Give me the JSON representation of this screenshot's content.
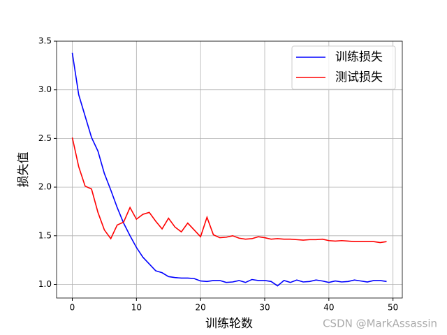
{
  "chart_data": {
    "type": "line",
    "xlabel": "训练轮数",
    "ylabel": "损失值",
    "x": [
      0,
      1,
      2,
      3,
      4,
      5,
      6,
      7,
      8,
      9,
      10,
      11,
      12,
      13,
      14,
      15,
      16,
      17,
      18,
      19,
      20,
      21,
      22,
      23,
      24,
      25,
      26,
      27,
      28,
      29,
      30,
      31,
      32,
      33,
      34,
      35,
      36,
      37,
      38,
      39,
      40,
      41,
      42,
      43,
      44,
      45,
      46,
      47,
      48,
      49
    ],
    "series": [
      {
        "name": "训练损失",
        "color": "#0000ff",
        "values": [
          3.38,
          2.95,
          2.73,
          2.51,
          2.37,
          2.14,
          1.97,
          1.79,
          1.63,
          1.5,
          1.38,
          1.28,
          1.21,
          1.14,
          1.12,
          1.08,
          1.07,
          1.065,
          1.065,
          1.06,
          1.035,
          1.03,
          1.04,
          1.04,
          1.02,
          1.025,
          1.04,
          1.02,
          1.05,
          1.04,
          1.04,
          1.03,
          0.985,
          1.04,
          1.02,
          1.045,
          1.025,
          1.03,
          1.045,
          1.035,
          1.02,
          1.035,
          1.025,
          1.03,
          1.045,
          1.035,
          1.025,
          1.04,
          1.04,
          1.03
        ]
      },
      {
        "name": "测试损失",
        "color": "#ff0000",
        "values": [
          2.51,
          2.21,
          2.01,
          1.98,
          1.74,
          1.56,
          1.47,
          1.61,
          1.64,
          1.79,
          1.67,
          1.72,
          1.74,
          1.65,
          1.57,
          1.68,
          1.59,
          1.54,
          1.63,
          1.56,
          1.49,
          1.69,
          1.51,
          1.48,
          1.485,
          1.5,
          1.475,
          1.465,
          1.47,
          1.49,
          1.48,
          1.465,
          1.47,
          1.465,
          1.465,
          1.46,
          1.455,
          1.46,
          1.46,
          1.465,
          1.45,
          1.445,
          1.45,
          1.445,
          1.44,
          1.44,
          1.44,
          1.44,
          1.43,
          1.44
        ]
      }
    ],
    "xlim": [
      -2.45,
      51.45
    ],
    "ylim": [
      0.86,
      3.5
    ],
    "xticks": [
      0,
      10,
      20,
      30,
      40,
      50
    ],
    "yticks": [
      {
        "value": 1,
        "label": "1.0"
      },
      1.5,
      {
        "value": 2,
        "label": "2.0"
      },
      2.5,
      {
        "value": 3,
        "label": "3.0"
      },
      3.5
    ],
    "grid": true,
    "legend": "upper right"
  },
  "watermark": "CSDN @MarkAssassin"
}
